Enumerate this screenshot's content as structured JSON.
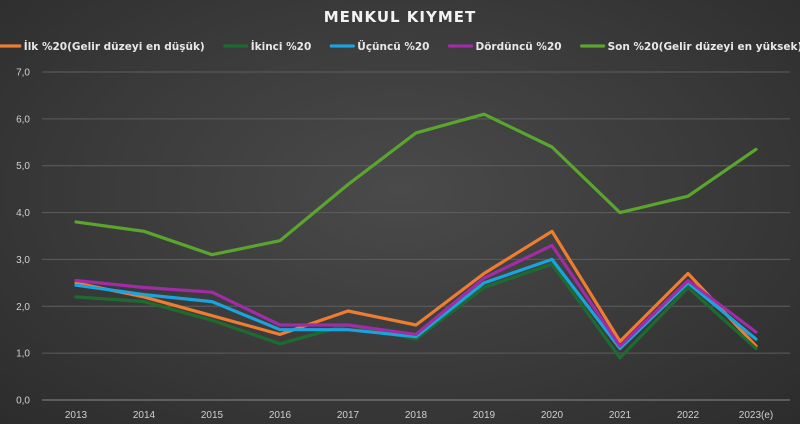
{
  "chart_data": {
    "type": "line",
    "title": "MENKUL KIYMET",
    "categories": [
      "2013",
      "2014",
      "2015",
      "2016",
      "2017",
      "2018",
      "2019",
      "2020",
      "2021",
      "2022",
      "2023(e)"
    ],
    "ylim": [
      0,
      7
    ],
    "yticks": [
      "0,0",
      "1,0",
      "2,0",
      "3,0",
      "4,0",
      "5,0",
      "6,0",
      "7,0"
    ],
    "grid": true,
    "legend_position": "top",
    "series": [
      {
        "name": "İlk %20(Gelir düzeyi en düşük)",
        "color": "#ed7d31",
        "values": [
          2.5,
          2.2,
          1.8,
          1.4,
          1.9,
          1.6,
          2.7,
          3.6,
          1.25,
          2.7,
          1.15
        ]
      },
      {
        "name": "İkinci %20",
        "color": "#1e6b30",
        "values": [
          2.2,
          2.1,
          1.7,
          1.2,
          1.6,
          1.3,
          2.4,
          2.9,
          0.9,
          2.4,
          1.1
        ]
      },
      {
        "name": "Üçüncü %20",
        "color": "#1aa3dc",
        "values": [
          2.45,
          2.25,
          2.1,
          1.5,
          1.5,
          1.35,
          2.5,
          3.0,
          1.1,
          2.5,
          1.3
        ]
      },
      {
        "name": "Dördüncü %20",
        "color": "#a12ca6",
        "values": [
          2.55,
          2.4,
          2.3,
          1.6,
          1.6,
          1.4,
          2.6,
          3.3,
          1.15,
          2.55,
          1.45
        ]
      },
      {
        "name": "Son %20(Gelir düzeyi en yüksek)",
        "color": "#5aa52e",
        "values": [
          3.8,
          3.6,
          3.1,
          3.4,
          4.6,
          5.7,
          6.1,
          5.4,
          4.0,
          4.35,
          5.35
        ]
      }
    ]
  }
}
